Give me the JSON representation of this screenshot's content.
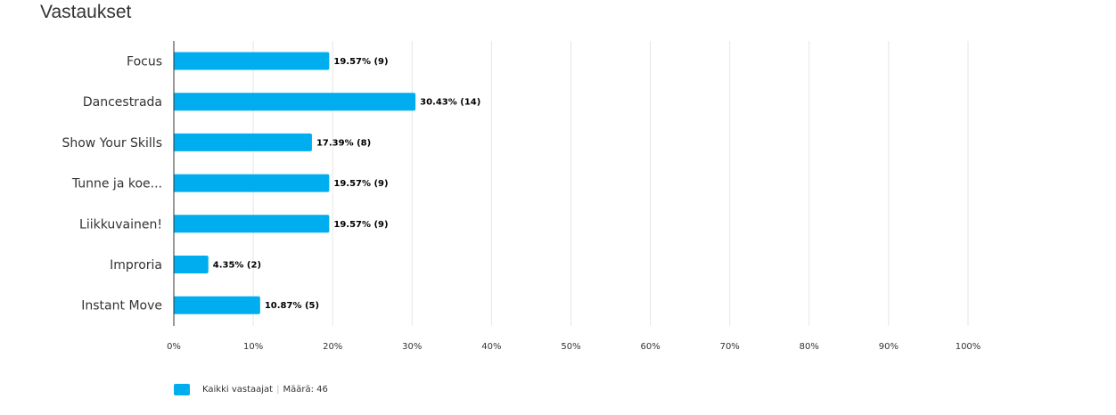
{
  "header": {
    "title": "Vastaukset"
  },
  "chart_data": {
    "type": "bar",
    "orientation": "horizontal",
    "categories": [
      "Focus",
      "Dancestrada",
      "Show Your Skills",
      "Tunne ja koe...",
      "Liikkuvainen!",
      "Improria",
      "Instant Move"
    ],
    "series": [
      {
        "name": "Kaikki vastaajat",
        "values": [
          19.57,
          30.43,
          17.39,
          19.57,
          19.57,
          4.35,
          10.87
        ],
        "counts": [
          9,
          14,
          8,
          9,
          9,
          2,
          5
        ],
        "color": "#00aeef"
      }
    ],
    "data_labels": [
      "19.57% (9)",
      "30.43% (14)",
      "17.39% (8)",
      "19.57% (9)",
      "19.57% (9)",
      "4.35% (2)",
      "10.87% (5)"
    ],
    "xlim": [
      0,
      100
    ],
    "x_ticks": [
      0,
      10,
      20,
      30,
      40,
      50,
      60,
      70,
      80,
      90,
      100
    ],
    "x_tick_labels": [
      "0%",
      "10%",
      "20%",
      "30%",
      "40%",
      "50%",
      "60%",
      "70%",
      "80%",
      "90%",
      "100%"
    ],
    "grid": true,
    "legend_position": "bottom-left"
  },
  "legend": {
    "series_label": "Kaikki vastaajat",
    "separator": "|",
    "count_text": "Määrä: 46"
  }
}
